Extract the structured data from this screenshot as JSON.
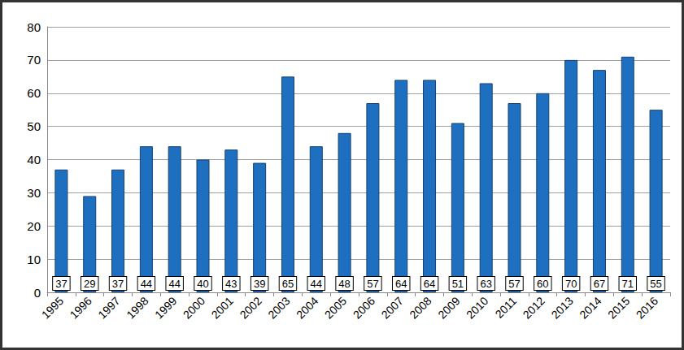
{
  "chart_data": {
    "type": "bar",
    "categories": [
      "1995",
      "1996",
      "1997",
      "1998",
      "1999",
      "2000",
      "2001",
      "2002",
      "2003",
      "2004",
      "2005",
      "2006",
      "2007",
      "2008",
      "2009",
      "2010",
      "2011",
      "2012",
      "2013",
      "2014",
      "2015",
      "2016"
    ],
    "values": [
      37,
      29,
      37,
      44,
      44,
      40,
      43,
      39,
      65,
      44,
      48,
      57,
      64,
      64,
      51,
      63,
      57,
      60,
      70,
      67,
      71,
      55
    ],
    "color": "#1f6fc0",
    "ylim": [
      0,
      80
    ],
    "yticks": [
      0,
      10,
      20,
      30,
      40,
      50,
      60,
      70,
      80
    ],
    "grid": true,
    "data_labels": true
  }
}
